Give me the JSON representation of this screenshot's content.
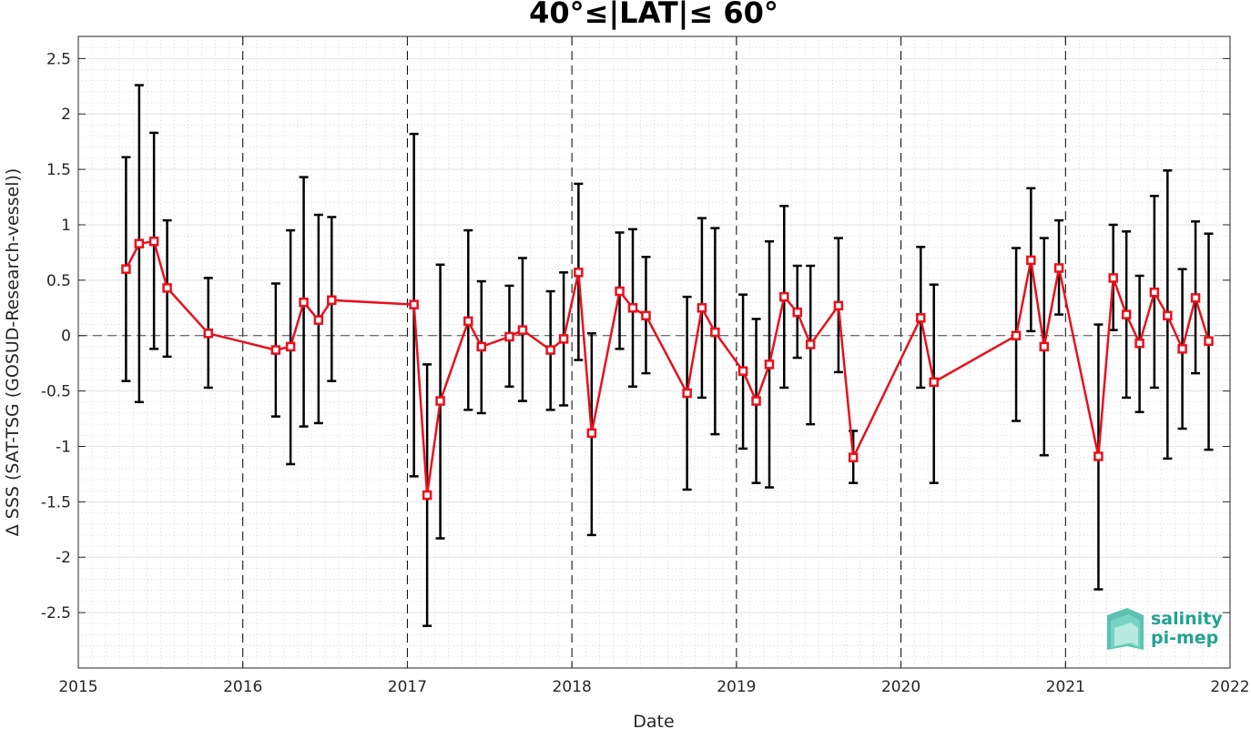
{
  "chart_data": {
    "type": "line",
    "title": "40°≤|LAT|≤ 60°",
    "xlabel": "Date",
    "ylabel": "Δ SSS (SAT-TSG (GOSUD-Research-vessel))",
    "xlim": [
      2015,
      2022
    ],
    "ylim": [
      -3.0,
      2.7
    ],
    "x_ticks": [
      "2015",
      "2016",
      "2017",
      "2018",
      "2019",
      "2020",
      "2021",
      "2022"
    ],
    "y_ticks": [
      "2.5",
      "2",
      "1.5",
      "1",
      "0.5",
      "0",
      "-0.5",
      "-1",
      "-1.5",
      "-2",
      "-2.5"
    ],
    "y_tick_values": [
      2.5,
      2,
      1.5,
      1,
      0.5,
      0,
      -0.5,
      -1,
      -1.5,
      -2,
      -2.5
    ],
    "grid": true,
    "minor_grid": true,
    "reference_line_y": 0,
    "year_boundaries": [
      2016,
      2017,
      2018,
      2019,
      2020,
      2021
    ],
    "series": [
      {
        "color": "#e8111c",
        "errorbar_color": "#000000",
        "marker": "square",
        "x": [
          2015.29,
          2015.37,
          2015.46,
          2015.54,
          2015.79,
          2016.2,
          2016.29,
          2016.37,
          2016.46,
          2016.54,
          2017.04,
          2017.12,
          2017.2,
          2017.37,
          2017.45,
          2017.62,
          2017.7,
          2017.87,
          2017.95,
          2018.04,
          2018.12,
          2018.29,
          2018.37,
          2018.45,
          2018.7,
          2018.79,
          2018.87,
          2019.04,
          2019.12,
          2019.2,
          2019.29,
          2019.37,
          2019.45,
          2019.62,
          2019.71,
          2020.12,
          2020.2,
          2020.7,
          2020.79,
          2020.87,
          2020.96,
          2021.2,
          2021.29,
          2021.37,
          2021.45,
          2021.54,
          2021.62,
          2021.71,
          2021.79,
          2021.87
        ],
        "y": [
          0.6,
          0.83,
          0.85,
          0.43,
          0.02,
          -0.13,
          -0.1,
          0.3,
          0.14,
          0.32,
          0.28,
          -1.44,
          -0.59,
          0.13,
          -0.1,
          -0.01,
          0.05,
          -0.13,
          -0.03,
          0.57,
          -0.88,
          0.4,
          0.25,
          0.18,
          -0.52,
          0.25,
          0.03,
          -0.32,
          -0.59,
          -0.26,
          0.35,
          0.21,
          -0.08,
          0.27,
          -1.1,
          0.16,
          -0.42,
          0.0,
          0.68,
          -0.1,
          0.61,
          -1.09,
          0.52,
          0.19,
          -0.07,
          0.39,
          0.18,
          -0.12,
          0.34,
          -0.05
        ],
        "err_low": [
          -0.41,
          -0.6,
          -0.12,
          -0.19,
          -0.47,
          -0.73,
          -1.16,
          -0.82,
          -0.79,
          -0.41,
          -1.27,
          -2.62,
          -1.83,
          -0.67,
          -0.7,
          -0.46,
          -0.59,
          -0.67,
          -0.63,
          -0.22,
          -1.8,
          -0.12,
          -0.46,
          -0.34,
          -1.39,
          -0.56,
          -0.89,
          -1.02,
          -1.33,
          -1.37,
          -0.47,
          -0.2,
          -0.8,
          -0.33,
          -1.33,
          -0.47,
          -1.33,
          -0.77,
          0.04,
          -1.08,
          0.19,
          -2.29,
          0.05,
          -0.56,
          -0.69,
          -0.47,
          -1.11,
          -0.84,
          -0.34,
          -1.03
        ],
        "err_high": [
          1.61,
          2.26,
          1.83,
          1.04,
          0.52,
          0.47,
          0.95,
          1.43,
          1.09,
          1.07,
          1.82,
          -0.26,
          0.64,
          0.95,
          0.49,
          0.45,
          0.7,
          0.4,
          0.57,
          1.37,
          0.02,
          0.93,
          0.96,
          0.71,
          0.35,
          1.06,
          0.97,
          0.37,
          0.15,
          0.85,
          1.17,
          0.63,
          0.63,
          0.88,
          -0.86,
          0.8,
          0.46,
          0.79,
          1.33,
          0.88,
          1.04,
          0.1,
          1.0,
          0.94,
          0.54,
          1.26,
          1.49,
          0.6,
          1.03,
          0.92
        ]
      }
    ]
  },
  "logo": {
    "line1": "salinity",
    "line2": "pi-mep",
    "color": "#23a391"
  }
}
